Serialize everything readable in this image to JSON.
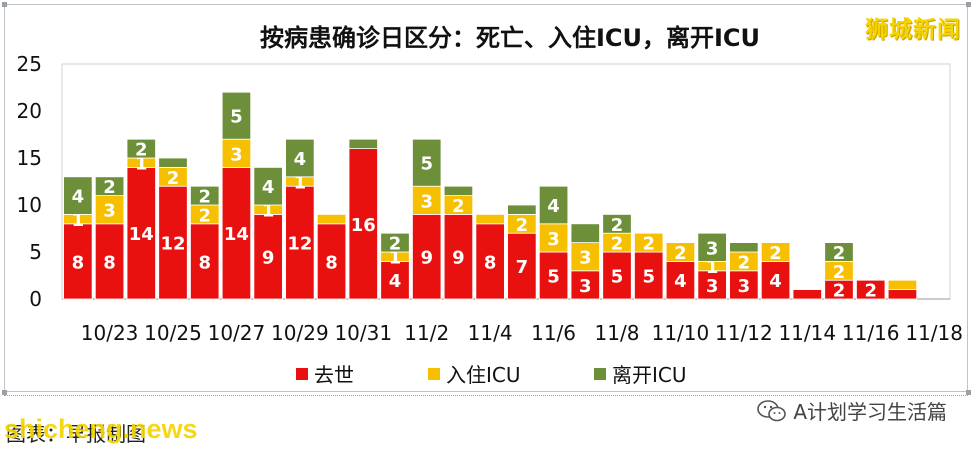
{
  "watermark_top": "狮城新闻",
  "footer": {
    "source_text": "图表：早报制图",
    "site_watermark": "shicheng.news",
    "wechat_label": "A计划学习生活篇",
    "wechat_icon": "wechat-icon"
  },
  "colors": {
    "death": "#e8110f",
    "icu_in": "#f6c000",
    "icu_out": "#6e8f3a"
  },
  "chart_data": {
    "type": "bar",
    "stacked": true,
    "title": "按病患确诊日区分：死亡、入住ICU，离开ICU",
    "xlabel": "",
    "ylabel": "",
    "ylim": [
      0,
      25
    ],
    "yticks": [
      0,
      5,
      10,
      15,
      20,
      25
    ],
    "grid": false,
    "legend_position": "bottom",
    "categories": [
      "10/22",
      "10/23",
      "10/24",
      "10/25",
      "10/26",
      "10/27",
      "10/28",
      "10/29",
      "10/30",
      "10/31",
      "11/1",
      "11/2",
      "11/3",
      "11/4",
      "11/5",
      "11/6",
      "11/7",
      "11/8",
      "11/9",
      "11/10",
      "11/11",
      "11/12",
      "11/13",
      "11/14",
      "11/15",
      "11/16",
      "11/17",
      "11/18"
    ],
    "tick_labels": [
      "10/23",
      "10/25",
      "10/27",
      "10/29",
      "10/31",
      "11/2",
      "11/4",
      "11/6",
      "11/8",
      "11/10",
      "11/12",
      "11/14",
      "11/16",
      "11/18"
    ],
    "series": [
      {
        "name": "去世",
        "values": [
          8,
          8,
          14,
          12,
          8,
          14,
          9,
          12,
          8,
          16,
          4,
          9,
          9,
          8,
          7,
          5,
          3,
          5,
          5,
          4,
          3,
          3,
          4,
          1,
          2,
          2,
          1,
          null
        ],
        "labels": [
          "8",
          "8",
          "14",
          "12",
          "8",
          "14",
          "9",
          "12",
          "8",
          "16",
          "4",
          "9",
          "9",
          "8",
          "7",
          "5",
          "3",
          "5",
          "5",
          "4",
          "3",
          "3",
          "4",
          "",
          "2",
          "2",
          "",
          ""
        ]
      },
      {
        "name": "入住ICU",
        "values": [
          1,
          3,
          1,
          2,
          2,
          3,
          1,
          1,
          1,
          0,
          1,
          3,
          2,
          1,
          2,
          3,
          3,
          2,
          2,
          2,
          1,
          2,
          2,
          0,
          2,
          0,
          1,
          null
        ],
        "labels": [
          "1",
          "3",
          "1",
          "2",
          "2",
          "3",
          "1",
          "1",
          "",
          "",
          "1",
          "3",
          "2",
          "",
          "2",
          "3",
          "3",
          "2",
          "2",
          "2",
          "1",
          "2",
          "2",
          "",
          "2",
          "",
          "",
          ""
        ]
      },
      {
        "name": "离开ICU",
        "values": [
          4,
          2,
          2,
          1,
          2,
          5,
          4,
          4,
          0,
          1,
          2,
          5,
          1,
          0,
          1,
          4,
          2,
          2,
          0,
          0,
          3,
          1,
          0,
          0,
          2,
          0,
          0,
          null
        ],
        "labels": [
          "4",
          "2",
          "2",
          "",
          "2",
          "5",
          "4",
          "4",
          "",
          "",
          "2",
          "5",
          "",
          "",
          "",
          "4",
          "",
          "2",
          "",
          "",
          "3",
          "",
          "",
          "",
          "2",
          "",
          "",
          ""
        ]
      }
    ]
  }
}
